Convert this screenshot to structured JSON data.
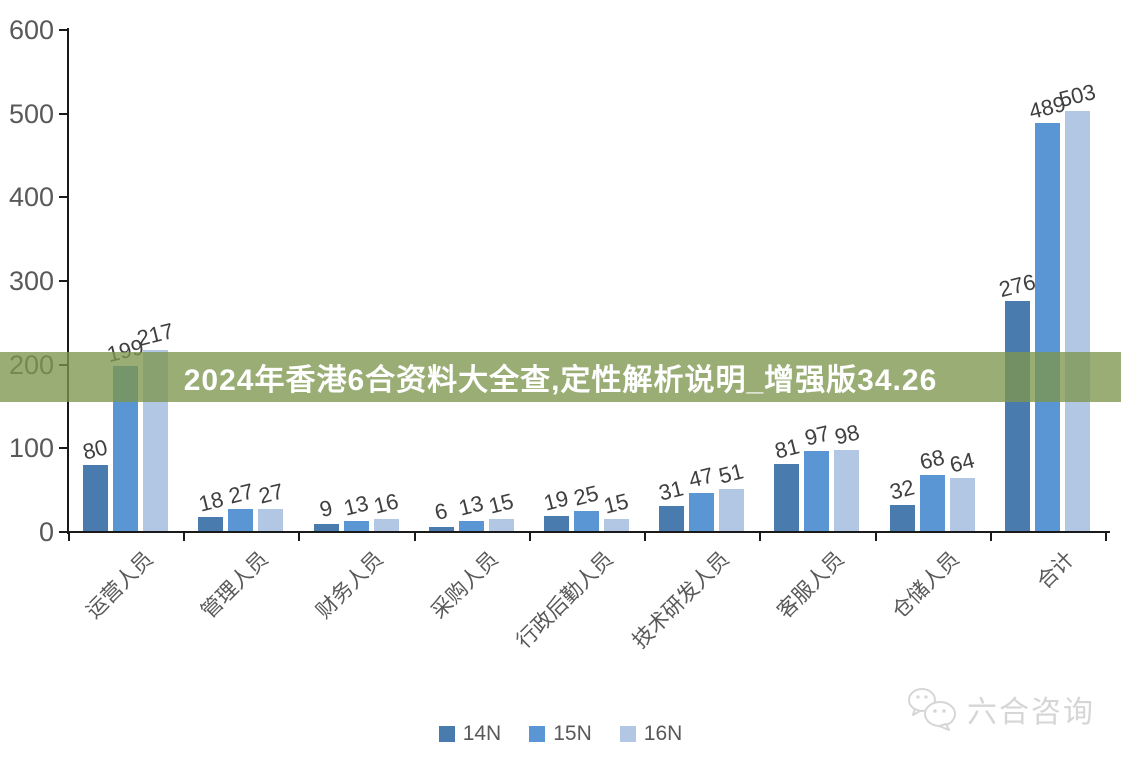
{
  "banner": {
    "text": "2024年香港6合资料大全查,定性解析说明_增强版34.26"
  },
  "watermark": {
    "text": "六合咨询",
    "icon": "wechat-chat-bubbles"
  },
  "colors": {
    "banner_overlay": "rgba(125,150,78,0.78)",
    "axis": "#1a1a1a",
    "tick_label": "#595959",
    "data_label": "#3f3f3f",
    "category_label": "#595959",
    "legend_label": "#595959",
    "watermark": "#d6d6d6",
    "series_14N": "#4a7bae",
    "series_15N": "#5996d3",
    "series_16N": "#b2c7e3"
  },
  "chart_data": {
    "type": "bar",
    "title": "",
    "xlabel": "",
    "ylabel": "",
    "categories": [
      "运营人员",
      "管理人员",
      "财务人员",
      "采购人员",
      "行政后勤人员",
      "技术研发人员",
      "客服人员",
      "仓储人员",
      "合计"
    ],
    "series": [
      {
        "name": "14N",
        "color": "#4a7bae",
        "values": [
          80,
          18,
          9,
          6,
          19,
          31,
          81,
          32,
          276
        ]
      },
      {
        "name": "15N",
        "color": "#5996d3",
        "values": [
          199,
          27,
          13,
          13,
          25,
          47,
          97,
          68,
          489
        ]
      },
      {
        "name": "16N",
        "color": "#b2c7e3",
        "values": [
          217,
          27,
          16,
          15,
          15,
          51,
          98,
          64,
          503
        ]
      }
    ],
    "ylim": [
      0,
      600
    ],
    "yticks": [
      0,
      100,
      200,
      300,
      400,
      500,
      600
    ],
    "grid": false,
    "legend_position": "bottom",
    "data_labels": true
  }
}
